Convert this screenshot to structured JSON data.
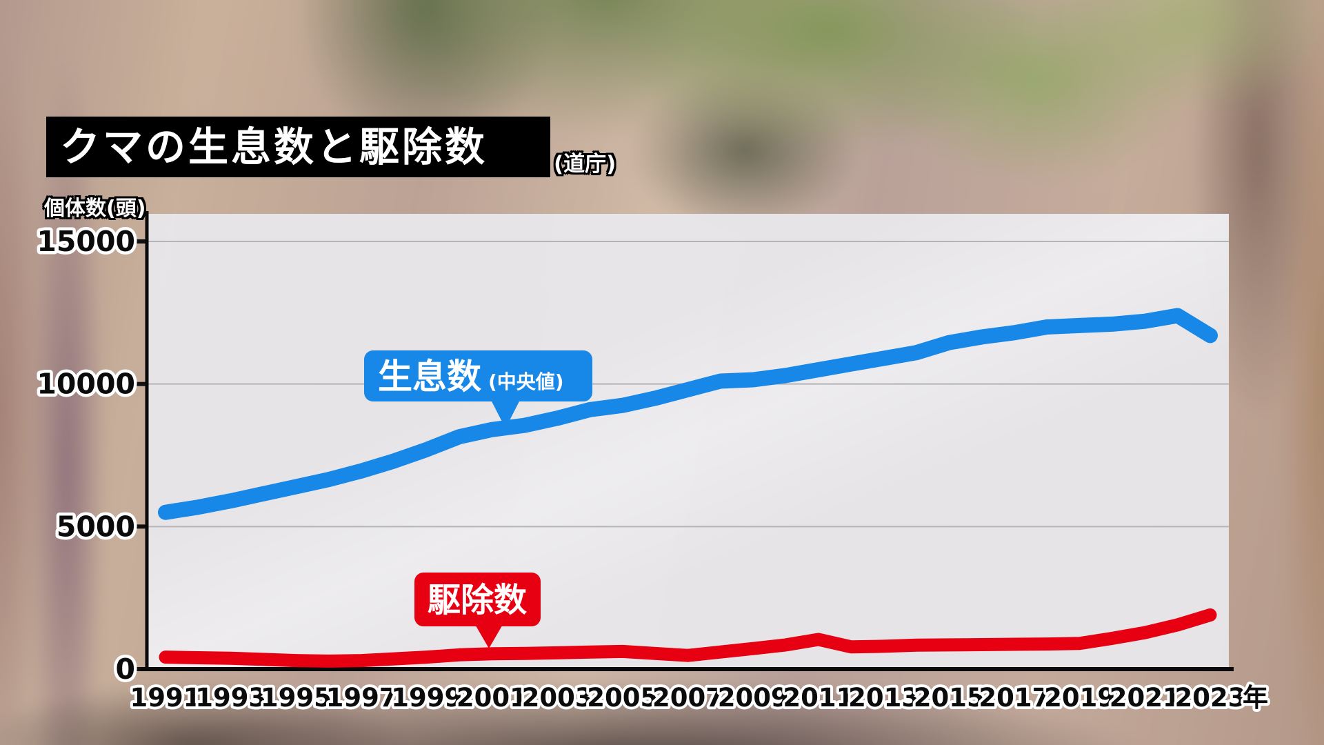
{
  "chart_data": {
    "type": "line",
    "title": "クマの生息数と駆除数",
    "source": "(道庁)",
    "ylabel": "個体数(頭)",
    "xlabel": "年",
    "ylim": [
      0,
      15000
    ],
    "y_ticks": [
      0,
      5000,
      10000,
      15000
    ],
    "x_range": [
      1991,
      2023
    ],
    "x_ticks": [
      1991,
      1993,
      1995,
      1997,
      1999,
      2001,
      2003,
      2005,
      2007,
      2009,
      2011,
      2013,
      2015,
      2017,
      2019,
      2021,
      2023
    ],
    "grid": "horizontal",
    "legend": "on-chart-callouts",
    "plot_background": "#e9e8ec",
    "years": [
      1991,
      1992,
      1993,
      1994,
      1995,
      1996,
      1997,
      1998,
      1999,
      2000,
      2001,
      2002,
      2003,
      2004,
      2005,
      2006,
      2007,
      2008,
      2009,
      2010,
      2011,
      2012,
      2013,
      2014,
      2015,
      2016,
      2017,
      2018,
      2019,
      2020,
      2021,
      2022,
      2023
    ],
    "series": [
      {
        "name": "生息数",
        "qualifier": "(中央値)",
        "color": "#1787e8",
        "values": [
          5500,
          5680,
          5900,
          6150,
          6400,
          6650,
          6950,
          7300,
          7700,
          8150,
          8400,
          8550,
          8800,
          9100,
          9250,
          9500,
          9800,
          10100,
          10150,
          10300,
          10500,
          10700,
          10900,
          11100,
          11450,
          11650,
          11800,
          12000,
          12050,
          12100,
          12200,
          12400,
          11700
        ]
      },
      {
        "name": "駆除数",
        "qualifier": "",
        "color": "#e60012",
        "values": [
          420,
          400,
          380,
          340,
          300,
          280,
          300,
          360,
          420,
          500,
          540,
          550,
          570,
          600,
          620,
          550,
          480,
          600,
          720,
          850,
          1040,
          780,
          800,
          840,
          850,
          860,
          870,
          880,
          900,
          1080,
          1280,
          1550,
          1900
        ]
      }
    ]
  }
}
